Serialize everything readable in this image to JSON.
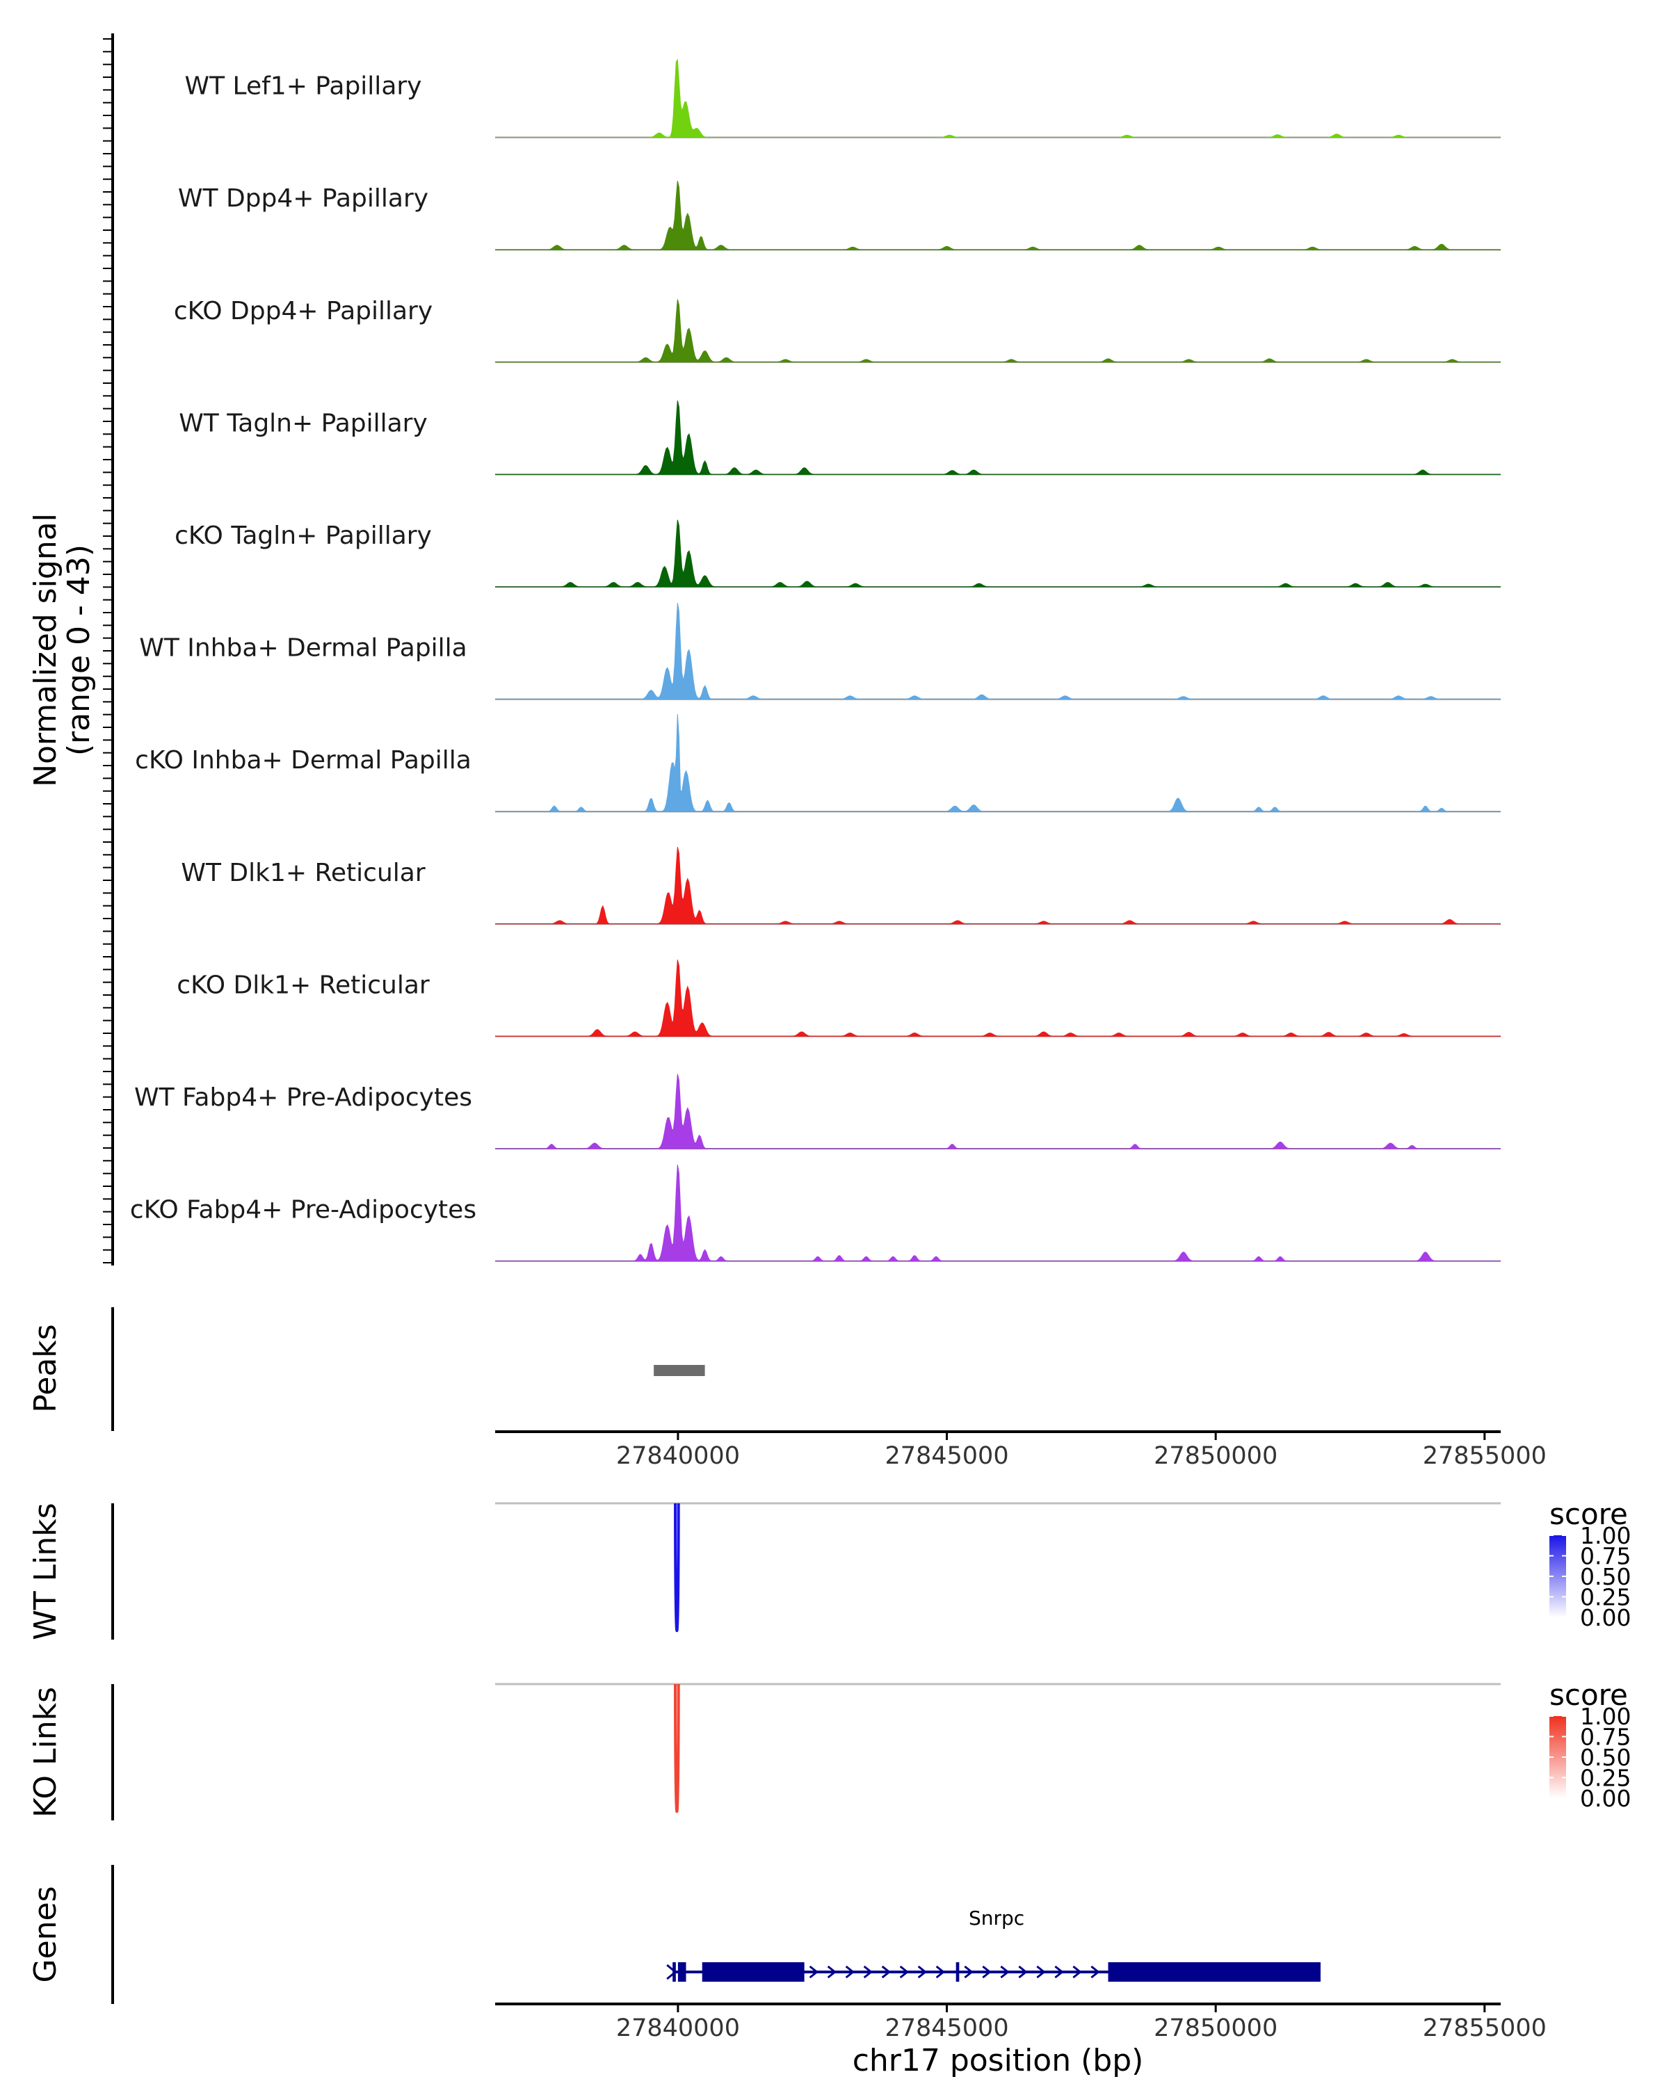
{
  "chart_data": {
    "type": "area",
    "genome_xlim": [
      27836600,
      27855300
    ],
    "coverage": {
      "y_axis_title_line1": "Normalized signal",
      "y_axis_title_line2": "(range 0 - 43)",
      "ylim": [
        0,
        43
      ],
      "tracks": [
        {
          "name": "WT Lef1+ Papillary",
          "color": "#72d20f",
          "peaks": [
            [
              27839980,
              35,
              2
            ],
            [
              27840140,
              16,
              3
            ],
            [
              27840350,
              4,
              3
            ],
            [
              27839650,
              2,
              3
            ],
            [
              27845050,
              1,
              3
            ],
            [
              27848350,
              1,
              3
            ],
            [
              27851150,
              1.2,
              3
            ],
            [
              27852250,
              1.5,
              3
            ],
            [
              27853400,
              1,
              3
            ]
          ]
        },
        {
          "name": "WT Dpp4+ Papillary",
          "color": "#4c8a0a",
          "peaks": [
            [
              27840000,
              30,
              2
            ],
            [
              27840180,
              16,
              3
            ],
            [
              27839850,
              10,
              3
            ],
            [
              27840430,
              6,
              2
            ],
            [
              27840800,
              2,
              3
            ],
            [
              27839000,
              2,
              3
            ],
            [
              27837750,
              2,
              3
            ],
            [
              27843250,
              1.2,
              3
            ],
            [
              27845000,
              1.5,
              3
            ],
            [
              27846600,
              1.2,
              3
            ],
            [
              27848580,
              2,
              3
            ],
            [
              27850050,
              1.2,
              3
            ],
            [
              27851800,
              1.2,
              3
            ],
            [
              27853700,
              1.5,
              3
            ],
            [
              27854200,
              2.5,
              3
            ]
          ]
        },
        {
          "name": "cKO Dpp4+ Papillary",
          "color": "#4c8a0a",
          "peaks": [
            [
              27840000,
              28,
              2
            ],
            [
              27840200,
              15,
              3
            ],
            [
              27839800,
              8,
              3
            ],
            [
              27840500,
              5,
              3
            ],
            [
              27839400,
              2,
              3
            ],
            [
              27840900,
              2,
              3
            ],
            [
              27842000,
              1.2,
              3
            ],
            [
              27843500,
              1.2,
              3
            ],
            [
              27846200,
              1.2,
              3
            ],
            [
              27848000,
              1.5,
              3
            ],
            [
              27849500,
              1.2,
              3
            ],
            [
              27851000,
              1.5,
              3
            ],
            [
              27852800,
              1.2,
              3
            ],
            [
              27854400,
              1.2,
              3
            ]
          ]
        },
        {
          "name": "WT Tagln+ Papillary",
          "color": "#066406",
          "peaks": [
            [
              27840000,
              33,
              2
            ],
            [
              27840200,
              18,
              3
            ],
            [
              27839800,
              12,
              3
            ],
            [
              27840500,
              6,
              2
            ],
            [
              27839400,
              4,
              3
            ],
            [
              27841050,
              3,
              3
            ],
            [
              27841450,
              2,
              3
            ],
            [
              27842350,
              3,
              3
            ],
            [
              27845100,
              1.8,
              3
            ],
            [
              27845500,
              2,
              3
            ],
            [
              27853850,
              2,
              3
            ]
          ]
        },
        {
          "name": "cKO Tagln+ Papillary",
          "color": "#066406",
          "peaks": [
            [
              27840000,
              30,
              2
            ],
            [
              27840200,
              16,
              3
            ],
            [
              27839750,
              9,
              3
            ],
            [
              27840500,
              5,
              3
            ],
            [
              27838000,
              2,
              3
            ],
            [
              27838800,
              2,
              3
            ],
            [
              27839250,
              2,
              3
            ],
            [
              27842400,
              2.5,
              3
            ],
            [
              27841900,
              2,
              3
            ],
            [
              27843300,
              1.5,
              3
            ],
            [
              27845600,
              1.5,
              3
            ],
            [
              27848750,
              1.2,
              3
            ],
            [
              27851300,
              1.5,
              3
            ],
            [
              27852600,
              1.5,
              3
            ],
            [
              27853200,
              2,
              3
            ],
            [
              27853900,
              1.2,
              3
            ]
          ]
        },
        {
          "name": "WT Inhba+ Dermal Papilla",
          "color": "#5fa8e3",
          "peaks": [
            [
              27840000,
              43,
              2
            ],
            [
              27840200,
              22,
              3
            ],
            [
              27839800,
              14,
              3
            ],
            [
              27840500,
              6,
              2
            ],
            [
              27839500,
              4,
              3
            ],
            [
              27841400,
              1.5,
              3
            ],
            [
              27843200,
              1.5,
              3
            ],
            [
              27844400,
              1.5,
              3
            ],
            [
              27845650,
              2,
              3
            ],
            [
              27847200,
              1.5,
              3
            ],
            [
              27849400,
              1.2,
              3
            ],
            [
              27852000,
              1.5,
              3
            ],
            [
              27853400,
              1.5,
              3
            ],
            [
              27854000,
              1.2,
              3
            ]
          ]
        },
        {
          "name": "cKO Inhba+ Dermal Papilla",
          "color": "#5fa8e3",
          "peaks": [
            [
              27840000,
              43,
              1
            ],
            [
              27839900,
              22,
              3
            ],
            [
              27840150,
              18,
              3
            ],
            [
              27839500,
              6,
              2
            ],
            [
              27840550,
              5,
              2
            ],
            [
              27840950,
              4,
              2
            ],
            [
              27837700,
              2.5,
              2
            ],
            [
              27838200,
              2,
              2
            ],
            [
              27845150,
              2.5,
              3
            ],
            [
              27845500,
              3,
              3
            ],
            [
              27849300,
              6,
              3
            ],
            [
              27850800,
              2,
              2
            ],
            [
              27851100,
              2,
              2
            ],
            [
              27853900,
              2.5,
              2
            ],
            [
              27854200,
              1.5,
              2
            ]
          ]
        },
        {
          "name": "WT Dlk1+ Reticular",
          "color": "#ef1a1a",
          "peaks": [
            [
              27840000,
              34,
              2
            ],
            [
              27840180,
              20,
              3
            ],
            [
              27839820,
              14,
              3
            ],
            [
              27840400,
              6,
              2
            ],
            [
              27838600,
              8,
              2
            ],
            [
              27837800,
              1.5,
              3
            ],
            [
              27842000,
              1.2,
              3
            ],
            [
              27843000,
              1.2,
              3
            ],
            [
              27845200,
              1.5,
              3
            ],
            [
              27846800,
              1.2,
              3
            ],
            [
              27848400,
              1.5,
              3
            ],
            [
              27850700,
              1.2,
              3
            ],
            [
              27852400,
              1.2,
              3
            ],
            [
              27854350,
              2,
              3
            ]
          ]
        },
        {
          "name": "cKO Dlk1+ Reticular",
          "color": "#ef1a1a",
          "peaks": [
            [
              27840000,
              34,
              2
            ],
            [
              27840180,
              22,
              3
            ],
            [
              27839800,
              15,
              3
            ],
            [
              27840450,
              6,
              3
            ],
            [
              27838500,
              3,
              3
            ],
            [
              27839200,
              2,
              3
            ],
            [
              27842300,
              2,
              3
            ],
            [
              27843200,
              1.5,
              3
            ],
            [
              27844400,
              1.5,
              3
            ],
            [
              27845800,
              1.5,
              3
            ],
            [
              27846800,
              2,
              3
            ],
            [
              27847300,
              1.5,
              3
            ],
            [
              27848200,
              1.5,
              3
            ],
            [
              27849500,
              1.8,
              3
            ],
            [
              27850500,
              1.5,
              3
            ],
            [
              27851400,
              1.5,
              3
            ],
            [
              27852100,
              1.8,
              3
            ],
            [
              27852800,
              1.5,
              3
            ],
            [
              27853500,
              1.2,
              3
            ]
          ]
        },
        {
          "name": "WT Fabp4+ Pre-Adipocytes",
          "color": "#a73de6",
          "peaks": [
            [
              27840000,
              33,
              2
            ],
            [
              27840180,
              18,
              3
            ],
            [
              27839820,
              14,
              3
            ],
            [
              27840400,
              6,
              2
            ],
            [
              27837650,
              2,
              2
            ],
            [
              27838450,
              2.5,
              3
            ],
            [
              27845100,
              2,
              2
            ],
            [
              27848500,
              2,
              2
            ],
            [
              27851200,
              3,
              3
            ],
            [
              27853250,
              2.5,
              3
            ],
            [
              27853650,
              1.5,
              2
            ]
          ]
        },
        {
          "name": "cKO Fabp4+ Pre-Adipocytes",
          "color": "#a73de6",
          "peaks": [
            [
              27840000,
              43,
              2
            ],
            [
              27840200,
              20,
              3
            ],
            [
              27839800,
              16,
              3
            ],
            [
              27839500,
              8,
              2
            ],
            [
              27840500,
              5,
              2
            ],
            [
              27839300,
              3,
              2
            ],
            [
              27840800,
              2,
              2
            ],
            [
              27842600,
              2,
              2
            ],
            [
              27843000,
              2.5,
              2
            ],
            [
              27843500,
              2,
              2
            ],
            [
              27844000,
              2,
              2
            ],
            [
              27844400,
              2.5,
              2
            ],
            [
              27844800,
              2,
              2
            ],
            [
              27849400,
              4,
              3
            ],
            [
              27850800,
              2,
              2
            ],
            [
              27851200,
              2,
              2
            ],
            [
              27853900,
              4,
              3
            ]
          ]
        }
      ]
    },
    "peaks_track": {
      "label": "Peaks",
      "color": "#6b6b6b",
      "regions": [
        [
          27839550,
          27840500
        ]
      ]
    },
    "top_axis": {
      "ticks": [
        27840000,
        27845000,
        27850000,
        27855000
      ],
      "tick_labels": [
        "27840000",
        "27845000",
        "27850000",
        "27855000"
      ]
    },
    "links_tracks": [
      {
        "label": "WT Links",
        "base_color": "#1a14e6",
        "links": [
          {
            "start": 27839950,
            "end": 27840010,
            "score": 1.0
          }
        ],
        "legend_title": "score",
        "legend_ticks": [
          1.0,
          0.75,
          0.5,
          0.25,
          0.0
        ],
        "legend_tick_labels": [
          "1.00",
          "0.75",
          "0.50",
          "0.25",
          "0.00"
        ]
      },
      {
        "label": "KO Links",
        "base_color": "#f0301e",
        "links": [
          {
            "start": 27839950,
            "end": 27840010,
            "score": 0.85
          }
        ],
        "legend_title": "score",
        "legend_ticks": [
          1.0,
          0.75,
          0.5,
          0.25,
          0.0
        ],
        "legend_tick_labels": [
          "1.00",
          "0.75",
          "0.50",
          "0.25",
          "0.00"
        ]
      }
    ],
    "genes_track": {
      "label": "Genes",
      "color": "#00008b",
      "gene_name": "Snrpc",
      "gene_start": 27839900,
      "gene_end": 27851950,
      "exons": [
        [
          27839900,
          27839960
        ],
        [
          27840000,
          27840150
        ],
        [
          27840450,
          27842350
        ],
        [
          27845170,
          27845230
        ],
        [
          27848000,
          27851950
        ]
      ]
    },
    "bottom_axis": {
      "ticks": [
        27840000,
        27845000,
        27850000,
        27855000
      ],
      "tick_labels": [
        "27840000",
        "27845000",
        "27850000",
        "27855000"
      ],
      "xlabel": "chr17 position (bp)"
    }
  }
}
